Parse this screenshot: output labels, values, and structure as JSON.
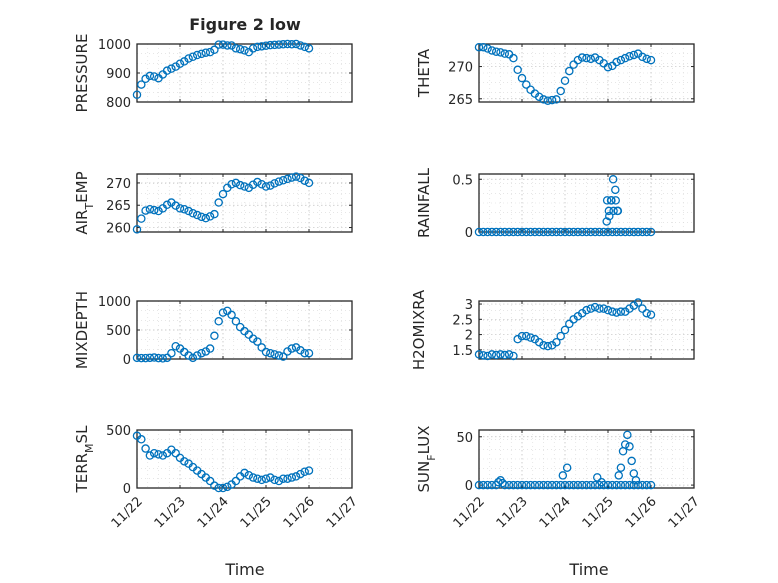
{
  "figure": {
    "title": "Figure 2 low",
    "xlabel": "Time",
    "x_tick_labels": [
      "11/22",
      "11/23",
      "11/24",
      "11/25",
      "11/26",
      "11/27"
    ],
    "marker_color": "#0072BD",
    "axis_color": "#262626"
  },
  "chart_data": [
    {
      "id": "pressure",
      "type": "scatter",
      "title": "Figure 2 low",
      "ylabel": "PRESSURE",
      "ylim": [
        800,
        1000
      ],
      "xlim": [
        0,
        5
      ],
      "yticks": [
        800,
        900,
        1000
      ],
      "ytick_labels": [
        "800",
        "900",
        "1000"
      ],
      "x": [
        0.0,
        0.1,
        0.2,
        0.3,
        0.4,
        0.5,
        0.6,
        0.7,
        0.8,
        0.9,
        1.0,
        1.1,
        1.2,
        1.3,
        1.4,
        1.5,
        1.6,
        1.7,
        1.8,
        1.9,
        2.0,
        2.1,
        2.2,
        2.3,
        2.4,
        2.5,
        2.6,
        2.7,
        2.8,
        2.9,
        3.0,
        3.1,
        3.2,
        3.3,
        3.4,
        3.5,
        3.6,
        3.7,
        3.8,
        3.9,
        4.0
      ],
      "values": [
        825,
        860,
        880,
        890,
        888,
        882,
        895,
        908,
        915,
        922,
        932,
        940,
        950,
        956,
        962,
        966,
        970,
        972,
        980,
        998,
        998,
        995,
        995,
        985,
        982,
        978,
        972,
        985,
        990,
        992,
        994,
        996,
        997,
        998,
        999,
        1000,
        999,
        1000,
        995,
        990,
        985
      ]
    },
    {
      "id": "theta",
      "type": "scatter",
      "ylabel": "THETA",
      "ylim": [
        264.5,
        273.5
      ],
      "xlim": [
        0,
        5
      ],
      "yticks": [
        265,
        270
      ],
      "ytick_labels": [
        "265",
        "270"
      ],
      "x": [
        0.0,
        0.1,
        0.2,
        0.3,
        0.4,
        0.5,
        0.6,
        0.7,
        0.8,
        0.9,
        1.0,
        1.1,
        1.2,
        1.3,
        1.4,
        1.5,
        1.6,
        1.7,
        1.8,
        1.9,
        2.0,
        2.1,
        2.2,
        2.3,
        2.4,
        2.5,
        2.6,
        2.7,
        2.8,
        2.9,
        3.0,
        3.1,
        3.2,
        3.3,
        3.4,
        3.5,
        3.6,
        3.7,
        3.8,
        3.9,
        4.0
      ],
      "values": [
        273,
        273,
        272.8,
        272.5,
        272.3,
        272.2,
        272,
        271.9,
        271.3,
        269.5,
        268.2,
        267.2,
        266.4,
        265.8,
        265.3,
        264.9,
        264.7,
        264.8,
        264.9,
        266.2,
        267.8,
        269.3,
        270.3,
        271,
        271.4,
        271.3,
        271.2,
        271.4,
        271,
        270.5,
        269.9,
        270.1,
        270.7,
        271,
        271.3,
        271.6,
        271.8,
        272,
        271.5,
        271.2,
        271
      ]
    },
    {
      "id": "air_temp",
      "type": "scatter",
      "ylabel": "AIR_TEMP",
      "ylabel_display": [
        "AIR",
        "T",
        "EMP"
      ],
      "ylim": [
        259,
        272
      ],
      "xlim": [
        0,
        5
      ],
      "yticks": [
        260,
        265,
        270
      ],
      "ytick_labels": [
        "260",
        "265",
        "270"
      ],
      "x": [
        0.0,
        0.1,
        0.2,
        0.3,
        0.4,
        0.5,
        0.6,
        0.7,
        0.8,
        0.9,
        1.0,
        1.1,
        1.2,
        1.3,
        1.4,
        1.5,
        1.6,
        1.7,
        1.8,
        1.9,
        2.0,
        2.1,
        2.2,
        2.3,
        2.4,
        2.5,
        2.6,
        2.7,
        2.8,
        2.9,
        3.0,
        3.1,
        3.2,
        3.3,
        3.4,
        3.5,
        3.6,
        3.7,
        3.8,
        3.9,
        4.0
      ],
      "values": [
        259.6,
        262,
        263.8,
        264.1,
        263.9,
        263.7,
        264.3,
        265.1,
        265.6,
        264.9,
        264.3,
        264.1,
        263.7,
        263.2,
        262.8,
        262.4,
        262.1,
        262.5,
        263,
        265.6,
        267.5,
        268.9,
        269.7,
        270,
        269.5,
        269.2,
        268.9,
        269.6,
        270.2,
        269.7,
        269.2,
        269.4,
        269.9,
        270.3,
        270.6,
        270.9,
        271.2,
        271.4,
        271.1,
        270.5,
        270
      ]
    },
    {
      "id": "rainfall",
      "type": "scatter",
      "ylabel": "RAINFALL",
      "ylim": [
        0,
        0.55
      ],
      "xlim": [
        0,
        5
      ],
      "yticks": [
        0,
        0.5
      ],
      "ytick_labels": [
        "0",
        "0.5"
      ],
      "x": [
        0.0,
        0.1,
        0.2,
        0.3,
        0.4,
        0.5,
        0.6,
        0.7,
        0.8,
        0.9,
        1.0,
        1.1,
        1.2,
        1.3,
        1.4,
        1.5,
        1.6,
        1.7,
        1.8,
        1.9,
        2.0,
        2.1,
        2.2,
        2.3,
        2.4,
        2.5,
        2.6,
        2.7,
        2.8,
        2.9,
        3.0,
        3.1,
        3.2,
        3.3,
        3.4,
        3.5,
        3.6,
        3.7,
        3.8,
        3.9,
        4.0,
        2.97,
        3.02,
        3.07,
        3.12,
        3.17,
        3.22,
        2.98,
        3.03,
        3.08,
        3.13,
        3.18,
        3.23
      ],
      "values": [
        0,
        0,
        0,
        0,
        0,
        0,
        0,
        0,
        0,
        0,
        0,
        0,
        0,
        0,
        0,
        0,
        0,
        0,
        0,
        0,
        0,
        0,
        0,
        0,
        0,
        0,
        0,
        0,
        0,
        0,
        0,
        0,
        0,
        0,
        0,
        0,
        0,
        0,
        0,
        0,
        0,
        0.1,
        0.2,
        0.3,
        0.5,
        0.4,
        0.2,
        0.3,
        0.15,
        0.3,
        0.2,
        0.3,
        0.2
      ]
    },
    {
      "id": "mixdepth",
      "type": "scatter",
      "ylabel": "MIXDEPTH",
      "ylim": [
        0,
        1000
      ],
      "xlim": [
        0,
        5
      ],
      "yticks": [
        0,
        500,
        1000
      ],
      "ytick_labels": [
        "0",
        "500",
        "1000"
      ],
      "x": [
        0.0,
        0.1,
        0.2,
        0.3,
        0.4,
        0.5,
        0.6,
        0.7,
        0.8,
        0.9,
        1.0,
        1.1,
        1.2,
        1.3,
        1.4,
        1.5,
        1.6,
        1.7,
        1.8,
        1.9,
        2.0,
        2.1,
        2.2,
        2.3,
        2.4,
        2.5,
        2.6,
        2.7,
        2.8,
        2.9,
        3.0,
        3.1,
        3.2,
        3.3,
        3.4,
        3.5,
        3.6,
        3.7,
        3.8,
        3.9,
        4.0
      ],
      "values": [
        20,
        15,
        15,
        20,
        25,
        15,
        10,
        20,
        100,
        220,
        180,
        120,
        60,
        20,
        60,
        100,
        130,
        180,
        400,
        650,
        800,
        830,
        760,
        650,
        550,
        480,
        420,
        350,
        300,
        200,
        120,
        100,
        80,
        60,
        40,
        130,
        180,
        200,
        150,
        100,
        100
      ]
    },
    {
      "id": "h2omixra",
      "type": "scatter",
      "ylabel": "H2OMIXRA",
      "ylim": [
        1.2,
        3.1
      ],
      "xlim": [
        0,
        5
      ],
      "yticks": [
        1.5,
        2,
        2.5,
        3
      ],
      "ytick_labels": [
        "1.5",
        "2",
        "2.5",
        "3"
      ],
      "x": [
        0.0,
        0.1,
        0.2,
        0.3,
        0.4,
        0.5,
        0.6,
        0.7,
        0.8,
        0.9,
        1.0,
        1.1,
        1.2,
        1.3,
        1.4,
        1.5,
        1.6,
        1.7,
        1.8,
        1.9,
        2.0,
        2.1,
        2.2,
        2.3,
        2.4,
        2.5,
        2.6,
        2.7,
        2.8,
        2.9,
        3.0,
        3.1,
        3.2,
        3.3,
        3.4,
        3.5,
        3.6,
        3.7,
        3.8,
        3.9,
        4.0
      ],
      "values": [
        1.35,
        1.32,
        1.3,
        1.35,
        1.33,
        1.35,
        1.33,
        1.35,
        1.3,
        1.85,
        1.95,
        1.95,
        1.9,
        1.85,
        1.75,
        1.65,
        1.62,
        1.65,
        1.75,
        1.95,
        2.15,
        2.35,
        2.5,
        2.6,
        2.7,
        2.8,
        2.85,
        2.9,
        2.85,
        2.85,
        2.8,
        2.75,
        2.72,
        2.75,
        2.75,
        2.85,
        2.95,
        3.05,
        2.85,
        2.7,
        2.65
      ]
    },
    {
      "id": "terr_msl",
      "type": "scatter",
      "ylabel": "TERR_MSL",
      "ylabel_display": [
        "TERR",
        "M",
        "SL"
      ],
      "ylim": [
        0,
        500
      ],
      "xlim": [
        0,
        5
      ],
      "yticks": [
        0,
        500
      ],
      "ytick_labels": [
        "0",
        "500"
      ],
      "x": [
        0.0,
        0.1,
        0.2,
        0.3,
        0.4,
        0.5,
        0.6,
        0.7,
        0.8,
        0.9,
        1.0,
        1.1,
        1.2,
        1.3,
        1.4,
        1.5,
        1.6,
        1.7,
        1.8,
        1.9,
        2.0,
        2.1,
        2.2,
        2.3,
        2.4,
        2.5,
        2.6,
        2.7,
        2.8,
        2.9,
        3.0,
        3.1,
        3.2,
        3.3,
        3.4,
        3.5,
        3.6,
        3.7,
        3.8,
        3.9,
        4.0
      ],
      "values": [
        450,
        420,
        340,
        280,
        300,
        290,
        280,
        300,
        330,
        300,
        260,
        230,
        210,
        180,
        150,
        120,
        90,
        60,
        20,
        0,
        0,
        10,
        30,
        60,
        100,
        130,
        110,
        90,
        80,
        70,
        80,
        90,
        70,
        60,
        80,
        80,
        90,
        100,
        120,
        140,
        150
      ]
    },
    {
      "id": "sun_flux",
      "type": "scatter",
      "ylabel": "SUN_FLUX",
      "ylabel_display": [
        "SUN",
        "F",
        "LUX"
      ],
      "ylim": [
        -3,
        57
      ],
      "xlim": [
        0,
        5
      ],
      "yticks": [
        0,
        50
      ],
      "ytick_labels": [
        "0",
        "50"
      ],
      "x": [
        0.0,
        0.1,
        0.2,
        0.3,
        0.4,
        0.5,
        0.6,
        0.7,
        0.8,
        0.9,
        1.0,
        1.1,
        1.2,
        1.3,
        1.4,
        1.5,
        1.6,
        1.7,
        1.8,
        1.9,
        2.0,
        2.1,
        2.2,
        2.3,
        2.4,
        2.5,
        2.6,
        2.7,
        2.8,
        2.9,
        3.0,
        3.1,
        3.2,
        3.3,
        3.4,
        3.5,
        3.6,
        3.7,
        3.8,
        3.9,
        4.0,
        0.45,
        0.55,
        1.95,
        2.05,
        2.75,
        2.85,
        3.25,
        3.3,
        3.35,
        3.4,
        3.45,
        3.5,
        3.55,
        3.6,
        3.65
      ],
      "values": [
        0,
        0,
        0,
        0,
        0,
        5,
        0,
        0,
        0,
        0,
        0,
        0,
        0,
        0,
        0,
        0,
        0,
        0,
        0,
        0,
        0,
        0,
        0,
        0,
        0,
        0,
        0,
        0,
        0,
        0,
        0,
        0,
        0,
        0,
        0,
        0,
        0,
        0,
        0,
        0,
        0,
        3,
        2,
        10,
        18,
        8,
        3,
        10,
        18,
        35,
        42,
        52,
        40,
        25,
        12,
        5
      ]
    }
  ]
}
